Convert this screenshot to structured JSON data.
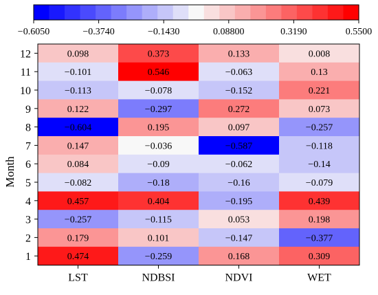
{
  "chart_data": {
    "type": "heatmap",
    "title": "",
    "xlabel": "",
    "ylabel": "Month",
    "x_categories": [
      "LST",
      "NDBSI",
      "NDVI",
      "WET"
    ],
    "y_categories": [
      "12",
      "11",
      "10",
      "9",
      "8",
      "7",
      "6",
      "5",
      "4",
      "3",
      "2",
      "1"
    ],
    "values": [
      [
        0.098,
        0.373,
        0.133,
        0.008
      ],
      [
        -0.101,
        0.546,
        -0.063,
        0.13
      ],
      [
        -0.113,
        -0.078,
        -0.152,
        0.221
      ],
      [
        0.122,
        -0.297,
        0.272,
        0.073
      ],
      [
        -0.604,
        0.195,
        0.097,
        -0.257
      ],
      [
        0.147,
        -0.036,
        -0.587,
        -0.118
      ],
      [
        0.084,
        -0.09,
        -0.062,
        -0.14
      ],
      [
        -0.082,
        -0.18,
        -0.16,
        -0.079
      ],
      [
        0.457,
        0.404,
        -0.195,
        0.439
      ],
      [
        -0.257,
        -0.115,
        0.053,
        0.198
      ],
      [
        0.179,
        0.101,
        -0.147,
        -0.377
      ],
      [
        0.474,
        -0.259,
        0.168,
        0.309
      ]
    ],
    "cell_labels": [
      [
        "0.098",
        "0.373",
        "0.133",
        "0.008"
      ],
      [
        "−0.101",
        "0.546",
        "−0.063",
        "0.13"
      ],
      [
        "−0.113",
        "−0.078",
        "−0.152",
        "0.221"
      ],
      [
        "0.122",
        "−0.297",
        "0.272",
        "0.073"
      ],
      [
        "−0.604",
        "0.195",
        "0.097",
        "−0.257"
      ],
      [
        "0.147",
        "−0.036",
        "−0.587",
        "−0.118"
      ],
      [
        "0.084",
        "−0.09",
        "−0.062",
        "−0.14"
      ],
      [
        "−0.082",
        "−0.18",
        "−0.16",
        "−0.079"
      ],
      [
        "0.457",
        "0.404",
        "−0.195",
        "0.439"
      ],
      [
        "−0.257",
        "−0.115",
        "0.053",
        "0.198"
      ],
      [
        "0.179",
        "0.101",
        "−0.147",
        "−0.377"
      ],
      [
        "0.474",
        "−0.259",
        "0.168",
        "0.309"
      ]
    ],
    "colorbar": {
      "min": -0.605,
      "max": 0.55,
      "ticks": [
        -0.605,
        -0.374,
        -0.143,
        0.088,
        0.319,
        0.55
      ],
      "tick_labels": [
        "−0.6050",
        "−0.3740",
        "−0.1430",
        "0.08800",
        "0.3190",
        "0.5500"
      ],
      "bins": 21,
      "placement": "top",
      "colors": {
        "low": "#0000ff",
        "mid": "#f8f8f8",
        "high": "#ff0000"
      }
    },
    "grid": false,
    "legend": "colorbar-top"
  }
}
